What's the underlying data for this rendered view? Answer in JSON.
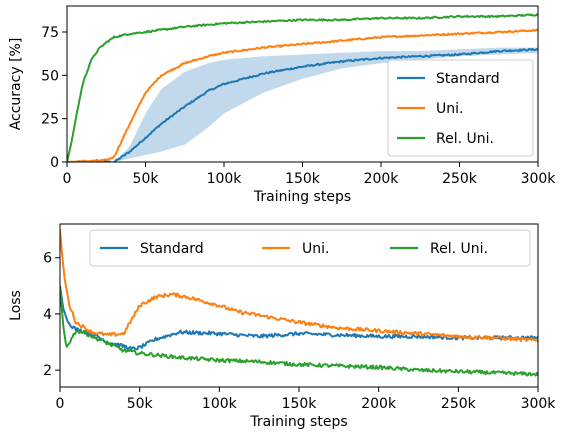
{
  "chart_data": [
    {
      "type": "line",
      "xlabel": "Training steps",
      "ylabel": "Accuracy [%]",
      "xlim": [
        0,
        300000
      ],
      "ylim": [
        0,
        90
      ],
      "xticks": [
        0,
        50000,
        100000,
        150000,
        200000,
        250000,
        300000
      ],
      "xtick_labels": [
        "0",
        "50k",
        "100k",
        "150k",
        "200k",
        "250k",
        "300k"
      ],
      "yticks": [
        0,
        25,
        50,
        75
      ],
      "ytick_labels": [
        "0",
        "25",
        "50",
        "75"
      ],
      "grid": false,
      "legend_position": "lower-right",
      "series": [
        {
          "name": "Standard",
          "color": "#1f77b4",
          "x": [
            0,
            25000,
            30000,
            40000,
            50000,
            60000,
            75000,
            90000,
            100000,
            125000,
            150000,
            175000,
            200000,
            225000,
            250000,
            275000,
            300000
          ],
          "values": [
            0,
            0,
            0,
            6,
            14,
            22,
            32,
            41,
            45,
            51,
            55,
            58,
            60,
            61,
            62,
            64,
            65
          ],
          "band_low": [
            0,
            0,
            0,
            2,
            4,
            6,
            10,
            20,
            28,
            40,
            48,
            54,
            57,
            59,
            61,
            62,
            63
          ],
          "band_high": [
            0,
            0,
            0,
            9,
            28,
            42,
            52,
            57,
            59,
            61,
            62,
            63,
            64,
            64,
            65,
            66,
            66
          ]
        },
        {
          "name": "Uni.",
          "color": "#ff7f0e",
          "x": [
            0,
            25000,
            30000,
            40000,
            50000,
            60000,
            75000,
            90000,
            100000,
            125000,
            150000,
            175000,
            200000,
            225000,
            250000,
            275000,
            300000
          ],
          "values": [
            0,
            1,
            3,
            22,
            40,
            50,
            57,
            61,
            63,
            66,
            68,
            70,
            72,
            73,
            74,
            75,
            76
          ]
        },
        {
          "name": "Rel. Uni.",
          "color": "#2ca02c",
          "x": [
            0,
            3000,
            6000,
            10000,
            15000,
            20000,
            25000,
            30000,
            40000,
            50000,
            75000,
            100000,
            125000,
            150000,
            175000,
            200000,
            225000,
            250000,
            275000,
            300000
          ],
          "values": [
            0,
            12,
            27,
            45,
            58,
            65,
            69,
            72,
            74,
            75,
            78,
            80,
            81,
            82,
            82,
            83,
            83,
            84,
            84,
            85
          ]
        }
      ]
    },
    {
      "type": "line",
      "xlabel": "Training steps",
      "ylabel": "Loss",
      "xlim": [
        0,
        300000
      ],
      "ylim": [
        1.4,
        7.2
      ],
      "xticks": [
        0,
        50000,
        100000,
        150000,
        200000,
        250000,
        300000
      ],
      "xtick_labels": [
        "0",
        "50k",
        "100k",
        "150k",
        "200k",
        "250k",
        "300k"
      ],
      "yticks": [
        2,
        4,
        6
      ],
      "ytick_labels": [
        "2",
        "4",
        "6"
      ],
      "grid": false,
      "legend_position": "top",
      "series": [
        {
          "name": "Standard",
          "color": "#1f77b4",
          "x": [
            0,
            2000,
            5000,
            10000,
            20000,
            30000,
            40000,
            45000,
            50000,
            60000,
            75000,
            100000,
            125000,
            150000,
            175000,
            200000,
            225000,
            250000,
            275000,
            300000
          ],
          "values": [
            5.0,
            4.2,
            3.7,
            3.45,
            3.3,
            3.0,
            2.85,
            2.75,
            2.8,
            3.1,
            3.35,
            3.3,
            3.2,
            3.3,
            3.25,
            3.2,
            3.2,
            3.15,
            3.15,
            3.15
          ]
        },
        {
          "name": "Uni.",
          "color": "#ff7f0e",
          "x": [
            0,
            1000,
            3000,
            6000,
            10000,
            20000,
            30000,
            40000,
            45000,
            50000,
            60000,
            70000,
            80000,
            90000,
            100000,
            110000,
            125000,
            150000,
            175000,
            200000,
            225000,
            250000,
            275000,
            300000
          ],
          "values": [
            7.0,
            6.3,
            5.2,
            4.3,
            3.7,
            3.35,
            3.25,
            3.3,
            3.8,
            4.3,
            4.6,
            4.7,
            4.6,
            4.45,
            4.3,
            4.1,
            3.95,
            3.7,
            3.5,
            3.4,
            3.3,
            3.2,
            3.15,
            3.05
          ]
        },
        {
          "name": "Rel. Uni.",
          "color": "#2ca02c",
          "x": [
            0,
            2000,
            4000,
            6000,
            10000,
            15000,
            20000,
            30000,
            40000,
            50000,
            75000,
            100000,
            125000,
            150000,
            175000,
            200000,
            225000,
            250000,
            275000,
            300000
          ],
          "values": [
            5.0,
            3.6,
            2.8,
            3.0,
            3.4,
            3.35,
            3.2,
            2.95,
            2.7,
            2.6,
            2.45,
            2.35,
            2.3,
            2.2,
            2.15,
            2.1,
            2.0,
            1.95,
            1.9,
            1.85
          ]
        }
      ]
    }
  ]
}
